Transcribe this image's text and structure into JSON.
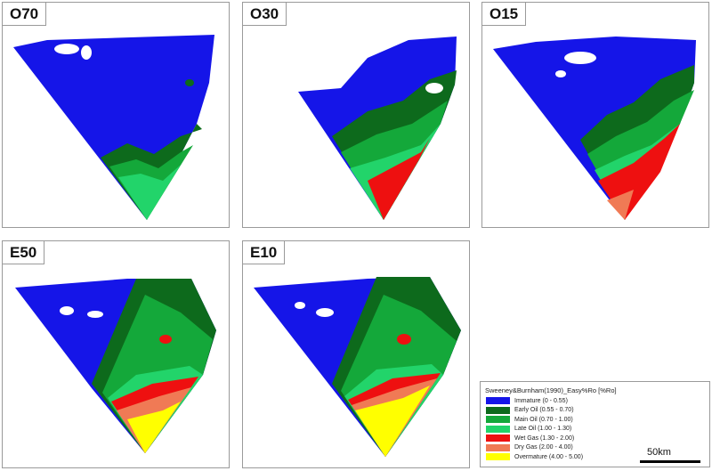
{
  "panels": [
    {
      "label": "O70"
    },
    {
      "label": "O30"
    },
    {
      "label": "O15"
    },
    {
      "label": "E50"
    },
    {
      "label": "E10"
    }
  ],
  "legend": {
    "title": "Sweeney&Burnham(1990)_Easy%Ro [%Ro]",
    "items": [
      {
        "label": "Immature (0 - 0.55)",
        "color": "#1515e8"
      },
      {
        "label": "Early Oil (0.55 - 0.70)",
        "color": "#0d6a1c"
      },
      {
        "label": "Main Oil (0.70 - 1.00)",
        "color": "#14a83a"
      },
      {
        "label": "Late Oil (1.00 - 1.30)",
        "color": "#22d46a"
      },
      {
        "label": "Wet Gas (1.30 - 2.00)",
        "color": "#ee1010"
      },
      {
        "label": "Dry Gas (2.00 - 4.00)",
        "color": "#f07a55"
      },
      {
        "label": "Overmature (4.00 - 5.00)",
        "color": "#ffff00"
      }
    ]
  },
  "scale_bar": {
    "label": "50km"
  }
}
